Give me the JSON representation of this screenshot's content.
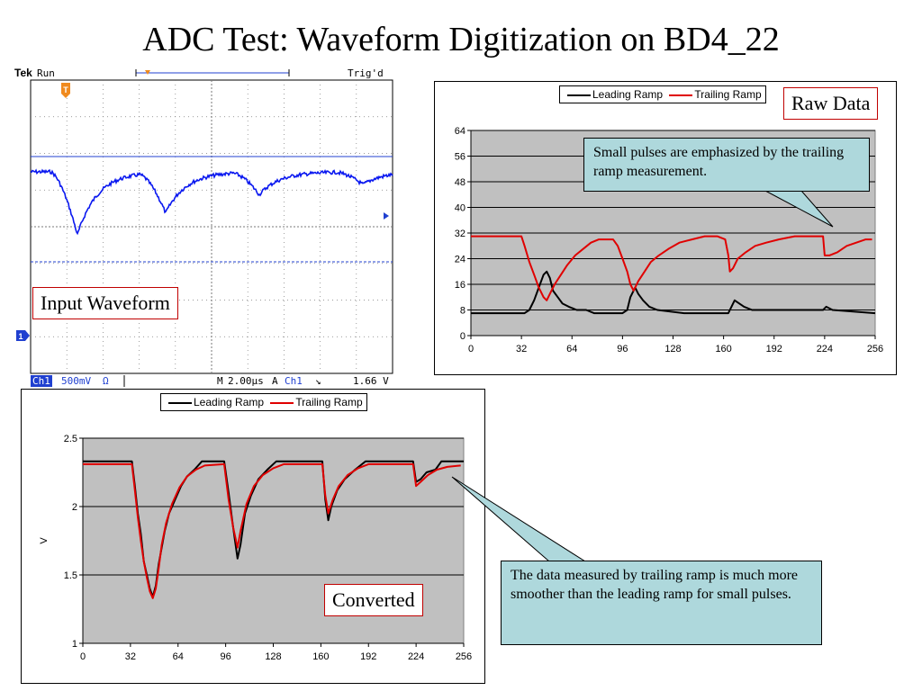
{
  "page": {
    "title": "ADC Test: Waveform Digitization on BD4_22"
  },
  "scope": {
    "label": "Input Waveform",
    "brand": "Tek",
    "run_state": "Run",
    "trig_state": "Trig'd",
    "ch_label": "Ch1",
    "volts_per_div": "500mV",
    "ohm_symbol": "Ω",
    "timebase_prefix": "M",
    "timebase": "2.00µs",
    "trigger_mode": "A",
    "trigger_channel": "Ch1",
    "trigger_slope": "↘",
    "trigger_level": "1.66 V",
    "trigger_marker": "T",
    "channel_marker": "1",
    "colors": {
      "trace": "#0a18f0",
      "background": "#ffffff",
      "marker": "#f08a1e",
      "channel_marker": "#2040d0"
    }
  },
  "raw": {
    "label": "Raw Data",
    "note": "Small pulses are emphasized by the trailing ramp measurement."
  },
  "converted": {
    "label": "Converted",
    "note": "The data measured by trailing ramp is much more smoother than the leading ramp for small pulses."
  },
  "chart_data": [
    {
      "type": "line",
      "ylim": [
        0,
        64
      ],
      "xlim": [
        0,
        256
      ],
      "yticks": [
        0,
        8,
        16,
        24,
        32,
        40,
        48,
        56,
        64
      ],
      "xticks": [
        0,
        32,
        64,
        96,
        128,
        160,
        192,
        224,
        256
      ],
      "grid": true,
      "legend_position": "top",
      "series": [
        {
          "name": "Leading Ramp",
          "color": "#000000",
          "points": [
            [
              0,
              7
            ],
            [
              34,
              7
            ],
            [
              37,
              8
            ],
            [
              40,
              11
            ],
            [
              43,
              15
            ],
            [
              46,
              19
            ],
            [
              48,
              20
            ],
            [
              50,
              18
            ],
            [
              52,
              14
            ],
            [
              55,
              12
            ],
            [
              58,
              10
            ],
            [
              62,
              9
            ],
            [
              67,
              8
            ],
            [
              73,
              8
            ],
            [
              78,
              7
            ],
            [
              96,
              7
            ],
            [
              99,
              8
            ],
            [
              101,
              12
            ],
            [
              104,
              15
            ],
            [
              106,
              13
            ],
            [
              109,
              11
            ],
            [
              113,
              9
            ],
            [
              118,
              8
            ],
            [
              135,
              7
            ],
            [
              163,
              7
            ],
            [
              165,
              9
            ],
            [
              167,
              11
            ],
            [
              170,
              10
            ],
            [
              173,
              9
            ],
            [
              178,
              8
            ],
            [
              223,
              8
            ],
            [
              225,
              9
            ],
            [
              229,
              8
            ],
            [
              256,
              7
            ]
          ]
        },
        {
          "name": "Trailing Ramp",
          "color": "#e00000",
          "points": [
            [
              0,
              31
            ],
            [
              32,
              31
            ],
            [
              34,
              28
            ],
            [
              37,
              23
            ],
            [
              40,
              19
            ],
            [
              43,
              15
            ],
            [
              46,
              12
            ],
            [
              48,
              11
            ],
            [
              50,
              13
            ],
            [
              53,
              16
            ],
            [
              57,
              19
            ],
            [
              61,
              22
            ],
            [
              66,
              25
            ],
            [
              71,
              27
            ],
            [
              76,
              29
            ],
            [
              81,
              30
            ],
            [
              86,
              30
            ],
            [
              90,
              30
            ],
            [
              93,
              28
            ],
            [
              96,
              24
            ],
            [
              99,
              20
            ],
            [
              101,
              16
            ],
            [
              103,
              14
            ],
            [
              106,
              17
            ],
            [
              110,
              20
            ],
            [
              114,
              23
            ],
            [
              119,
              25
            ],
            [
              125,
              27
            ],
            [
              132,
              29
            ],
            [
              140,
              30
            ],
            [
              148,
              31
            ],
            [
              156,
              31
            ],
            [
              161,
              30
            ],
            [
              163,
              25
            ],
            [
              164,
              20
            ],
            [
              166,
              21
            ],
            [
              169,
              24
            ],
            [
              174,
              26
            ],
            [
              180,
              28
            ],
            [
              187,
              29
            ],
            [
              195,
              30
            ],
            [
              205,
              31
            ],
            [
              223,
              31
            ],
            [
              224,
              25
            ],
            [
              227,
              25
            ],
            [
              232,
              26
            ],
            [
              238,
              28
            ],
            [
              244,
              29
            ],
            [
              250,
              30
            ],
            [
              254,
              30
            ]
          ]
        }
      ]
    },
    {
      "type": "line",
      "ylabel": "V",
      "ylim": [
        1,
        2.5
      ],
      "xlim": [
        0,
        256
      ],
      "yticks": [
        1,
        1.5,
        2,
        2.5
      ],
      "xticks": [
        0,
        32,
        64,
        96,
        128,
        160,
        192,
        224,
        256
      ],
      "grid": true,
      "legend_position": "top",
      "series": [
        {
          "name": "Leading Ramp",
          "color": "#000000",
          "points": [
            [
              0,
              2.33
            ],
            [
              33,
              2.33
            ],
            [
              35,
              2.15
            ],
            [
              37,
              1.95
            ],
            [
              39,
              1.8
            ],
            [
              41,
              1.6
            ],
            [
              43,
              1.5
            ],
            [
              45,
              1.4
            ],
            [
              47,
              1.34
            ],
            [
              49,
              1.42
            ],
            [
              51,
              1.58
            ],
            [
              53,
              1.7
            ],
            [
              55,
              1.82
            ],
            [
              58,
              1.95
            ],
            [
              62,
              2.05
            ],
            [
              66,
              2.15
            ],
            [
              70,
              2.22
            ],
            [
              75,
              2.27
            ],
            [
              80,
              2.33
            ],
            [
              95,
              2.33
            ],
            [
              98,
              2.1
            ],
            [
              101,
              1.85
            ],
            [
              104,
              1.62
            ],
            [
              106,
              1.72
            ],
            [
              109,
              1.95
            ],
            [
              113,
              2.08
            ],
            [
              118,
              2.2
            ],
            [
              124,
              2.27
            ],
            [
              130,
              2.33
            ],
            [
              161,
              2.33
            ],
            [
              163,
              2.05
            ],
            [
              165,
              1.9
            ],
            [
              167,
              2.0
            ],
            [
              171,
              2.12
            ],
            [
              176,
              2.2
            ],
            [
              183,
              2.27
            ],
            [
              190,
              2.33
            ],
            [
              222,
              2.33
            ],
            [
              224,
              2.18
            ],
            [
              227,
              2.2
            ],
            [
              231,
              2.25
            ],
            [
              237,
              2.27
            ],
            [
              241,
              2.33
            ],
            [
              256,
              2.33
            ]
          ]
        },
        {
          "name": "Trailing Ramp",
          "color": "#e00000",
          "points": [
            [
              0,
              2.31
            ],
            [
              33,
              2.31
            ],
            [
              35,
              2.12
            ],
            [
              37,
              1.92
            ],
            [
              39,
              1.75
            ],
            [
              41,
              1.6
            ],
            [
              43,
              1.48
            ],
            [
              45,
              1.38
            ],
            [
              47,
              1.33
            ],
            [
              49,
              1.4
            ],
            [
              51,
              1.55
            ],
            [
              53,
              1.72
            ],
            [
              56,
              1.88
            ],
            [
              60,
              2.02
            ],
            [
              65,
              2.14
            ],
            [
              70,
              2.22
            ],
            [
              76,
              2.27
            ],
            [
              82,
              2.3
            ],
            [
              95,
              2.31
            ],
            [
              98,
              2.05
            ],
            [
              101,
              1.85
            ],
            [
              104,
              1.7
            ],
            [
              106,
              1.82
            ],
            [
              110,
              2.02
            ],
            [
              115,
              2.15
            ],
            [
              121,
              2.23
            ],
            [
              128,
              2.28
            ],
            [
              135,
              2.31
            ],
            [
              161,
              2.31
            ],
            [
              163,
              2.08
            ],
            [
              165,
              1.95
            ],
            [
              168,
              2.05
            ],
            [
              172,
              2.15
            ],
            [
              178,
              2.23
            ],
            [
              185,
              2.28
            ],
            [
              192,
              2.31
            ],
            [
              222,
              2.31
            ],
            [
              224,
              2.15
            ],
            [
              227,
              2.18
            ],
            [
              232,
              2.23
            ],
            [
              238,
              2.27
            ],
            [
              245,
              2.29
            ],
            [
              254,
              2.3
            ]
          ]
        }
      ]
    }
  ]
}
